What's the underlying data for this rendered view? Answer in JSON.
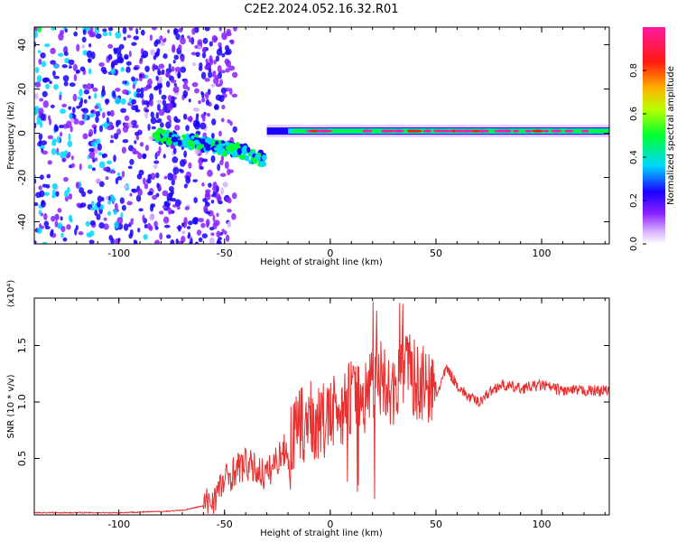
{
  "title": "C2E2.2024.052.16.32.R01",
  "chart_data": [
    {
      "type": "heatmap",
      "xlabel": "Height of straight line (km)",
      "ylabel": "Frequency (Hz)",
      "xlim": [
        -140,
        132
      ],
      "ylim": [
        -50,
        48
      ],
      "xticks": [
        "-100",
        "-50",
        "0",
        "50",
        "100"
      ],
      "yticks": [
        "40",
        "20",
        "0",
        "-20",
        "-40"
      ],
      "colorbar": {
        "label": "Normalized spectral amplitude",
        "range": [
          0,
          1
        ],
        "ticks": [
          "0.0",
          "0.2",
          "0.4",
          "0.6",
          "0.8"
        ],
        "colors": [
          "#ffffff",
          "#b04cff",
          "#6a00ff",
          "#0030ff",
          "#00d8ff",
          "#00ff40",
          "#b8ff00",
          "#ff8a00",
          "#ff0020",
          "#ff1aa0"
        ]
      },
      "features": [
        {
          "name": "noise",
          "x_range": [
            -140,
            -50
          ],
          "f_range": [
            -50,
            48
          ]
        },
        {
          "name": "sloped-branch",
          "points": [
            [
              -82,
              -1
            ],
            [
              -70,
              -3
            ],
            [
              -58,
              -5
            ],
            [
              -50,
              -7
            ],
            [
              -42,
              -8
            ],
            [
              -32,
              -12
            ]
          ]
        },
        {
          "name": "steady-line",
          "x_range": [
            -30,
            132
          ],
          "frequency": 1,
          "peak_amplitude": 0.95
        }
      ]
    },
    {
      "type": "line",
      "xlabel": "Height of straight line (km)",
      "ylabel": "SNR (10 * v/v)",
      "scale_label": "(x10⁴)",
      "xlim": [
        -140,
        132
      ],
      "ylim": [
        0,
        1.92
      ],
      "xticks": [
        "-100",
        "-50",
        "0",
        "50",
        "100"
      ],
      "yticks": [
        "0.5",
        "1.0",
        "1.5"
      ],
      "color": "#e83030",
      "series": [
        {
          "x": [
            -140,
            -120,
            -100,
            -80,
            -70,
            -60,
            -55,
            -50,
            -45,
            -40,
            -35,
            -30,
            -25,
            -20,
            -15,
            -10,
            -5,
            0,
            5,
            10,
            15,
            20,
            25,
            30,
            35,
            40,
            45,
            50,
            55,
            60,
            65,
            70,
            75,
            80,
            90,
            100,
            110,
            120,
            132
          ],
          "y": [
            0.02,
            0.02,
            0.02,
            0.03,
            0.04,
            0.08,
            0.15,
            0.3,
            0.4,
            0.45,
            0.4,
            0.35,
            0.5,
            0.6,
            0.75,
            0.85,
            0.8,
            0.85,
            0.95,
            1.05,
            1.0,
            1.2,
            1.25,
            1.1,
            1.35,
            1.2,
            1.15,
            1.05,
            1.3,
            1.15,
            1.05,
            1.0,
            1.08,
            1.15,
            1.12,
            1.15,
            1.1,
            1.1,
            1.1
          ]
        }
      ]
    }
  ]
}
